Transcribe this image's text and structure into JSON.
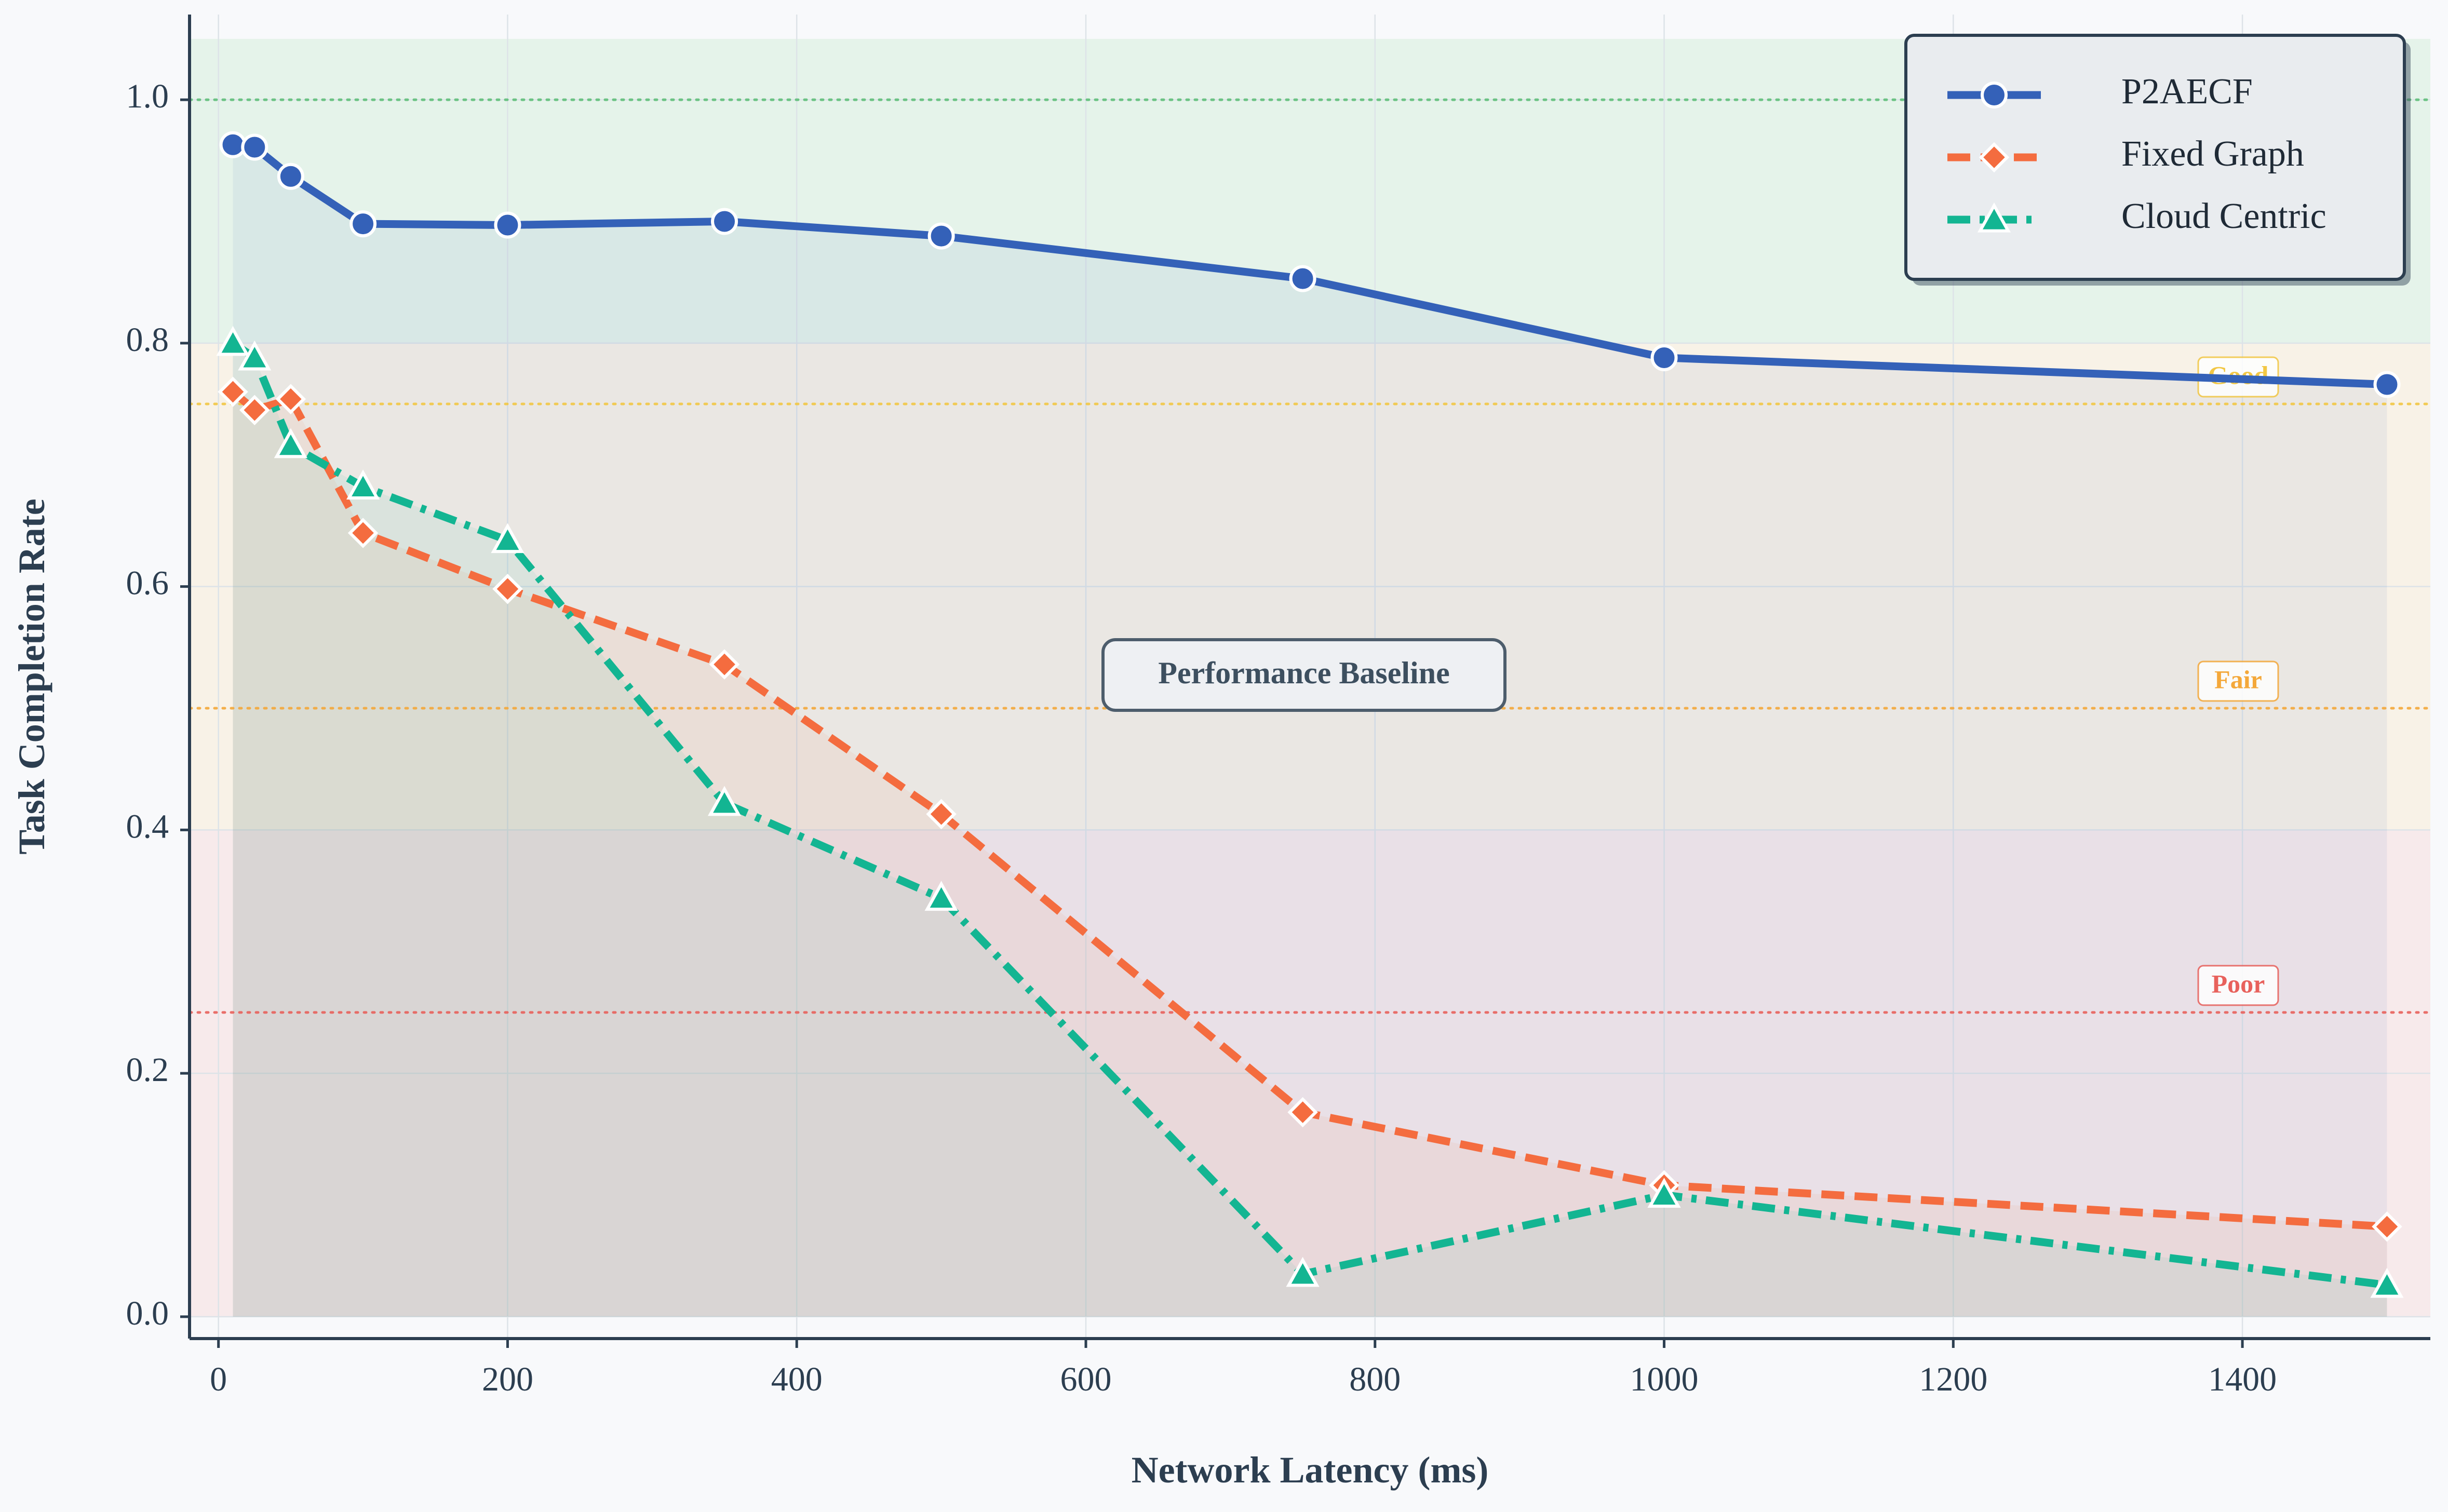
{
  "chart_data": {
    "type": "line",
    "xlabel": "Network Latency (ms)",
    "ylabel": "Task Completion Rate",
    "xlim": [
      -20,
      1530
    ],
    "ylim": [
      -0.018,
      1.07
    ],
    "xticks": [
      0,
      200,
      400,
      600,
      800,
      1000,
      1200,
      1400
    ],
    "yticks": [
      0.0,
      0.2,
      0.4,
      0.6,
      0.8,
      1.0
    ],
    "xtick_labels": [
      "0",
      "200",
      "400",
      "600",
      "800",
      "1000",
      "1200",
      "1400"
    ],
    "ytick_labels": [
      "0.0",
      "0.2",
      "0.4",
      "0.6",
      "0.8",
      "1.0"
    ],
    "grid": true,
    "legend_position": "top-right",
    "x": [
      10,
      25,
      50,
      100,
      200,
      350,
      500,
      750,
      1000,
      1500
    ],
    "series": [
      {
        "name": "P2AECF",
        "color": "#3461b8",
        "line_style": "solid",
        "marker": "circle",
        "values": [
          0.963,
          0.961,
          0.937,
          0.898,
          0.897,
          0.9,
          0.888,
          0.853,
          0.788,
          0.766
        ]
      },
      {
        "name": "Fixed Graph",
        "color": "#f46c3f",
        "line_style": "dashed",
        "marker": "diamond",
        "values": [
          0.76,
          0.745,
          0.754,
          0.644,
          0.598,
          0.536,
          0.413,
          0.168,
          0.108,
          0.074
        ]
      },
      {
        "name": "Cloud Centric",
        "color": "#13b592",
        "line_style": "dashdot",
        "marker": "triangle",
        "values": [
          0.8,
          0.788,
          0.716,
          0.682,
          0.638,
          0.422,
          0.344,
          0.035,
          0.1,
          0.026
        ]
      }
    ],
    "reference_lines": [
      {
        "y": 1.0,
        "color": "#5fbf7a",
        "label": ""
      },
      {
        "y": 0.75,
        "color": "#f2c744",
        "label": "Good"
      },
      {
        "y": 0.5,
        "color": "#f4a83a",
        "label": "Fair"
      },
      {
        "y": 0.25,
        "color": "#e8615c",
        "label": "Poor"
      }
    ],
    "bands": [
      {
        "from": 0.8,
        "to": 1.05,
        "color": "#d5eedd"
      },
      {
        "from": 0.4,
        "to": 0.8,
        "color": "#f7ecd7"
      },
      {
        "from": 0.0,
        "to": 0.4,
        "color": "#f5dede"
      }
    ],
    "annotation": "Performance Baseline"
  }
}
